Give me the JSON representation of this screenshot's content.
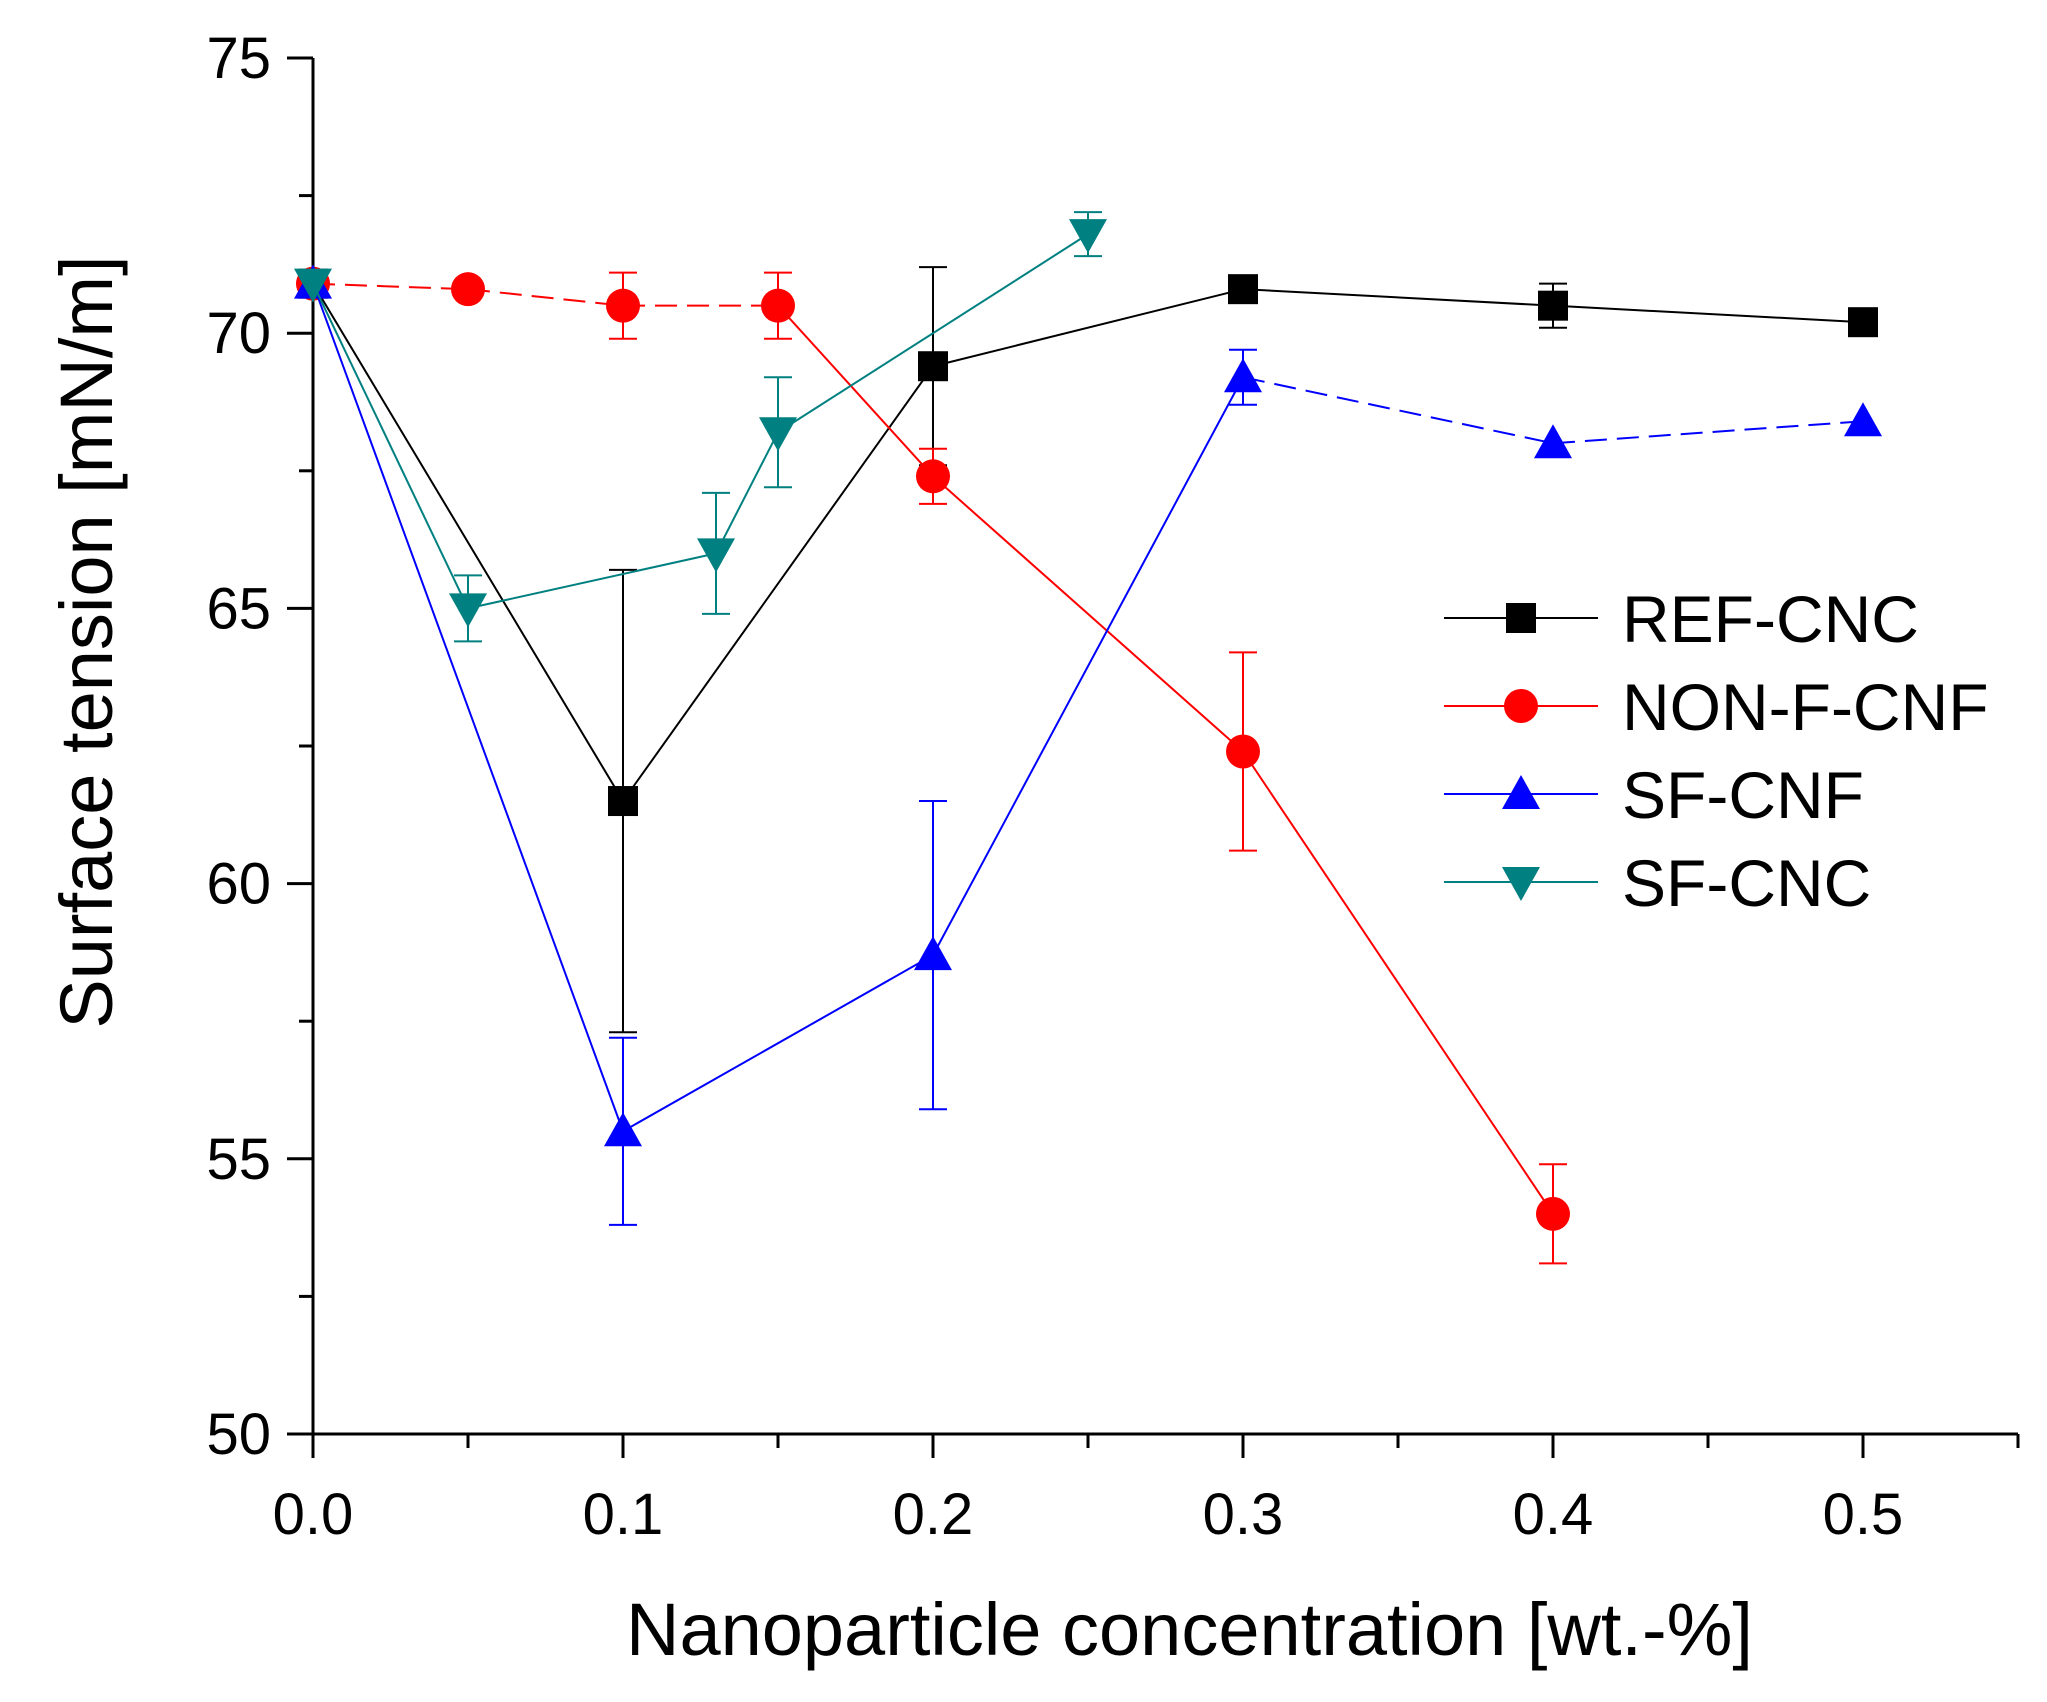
{
  "chart_data": {
    "type": "line",
    "title": "",
    "xlabel": "Nanoparticle concentration [wt.-%]",
    "ylabel": "Surface tension [mN/m]",
    "xlim": [
      0.0,
      0.55
    ],
    "ylim": [
      50,
      75
    ],
    "xticks": [
      0.0,
      0.1,
      0.2,
      0.3,
      0.4,
      0.5
    ],
    "xtick_labels": [
      "0.0",
      "0.1",
      "0.2",
      "0.3",
      "0.4",
      "0.5"
    ],
    "xminor": [
      0.05,
      0.15,
      0.25,
      0.35,
      0.45,
      0.55
    ],
    "yticks": [
      50,
      55,
      60,
      65,
      70,
      75
    ],
    "ytick_labels": [
      "50",
      "55",
      "60",
      "65",
      "70",
      "75"
    ],
    "yminor": [
      52.5,
      57.5,
      62.5,
      67.5,
      72.5
    ],
    "grid": false,
    "legend_position": "center-right",
    "series": [
      {
        "name": "REF-CNC",
        "color": "#000000",
        "marker": "square",
        "line_style": "solid",
        "x": [
          0.0,
          0.1,
          0.2,
          0.3,
          0.4,
          0.5
        ],
        "y": [
          70.9,
          61.5,
          69.4,
          70.8,
          70.5,
          70.2
        ],
        "err": [
          0,
          4.2,
          1.8,
          0,
          0.4,
          0.2
        ]
      },
      {
        "name": "NON-F-CNF",
        "color": "#ff0000",
        "marker": "circle",
        "line_style": "dashed-then-solid",
        "dash_until_index": 3,
        "x": [
          0.0,
          0.05,
          0.1,
          0.15,
          0.2,
          0.3,
          0.4
        ],
        "y": [
          70.9,
          70.8,
          70.5,
          70.5,
          67.4,
          62.4,
          54.0
        ],
        "err": [
          0,
          0,
          0.6,
          0.6,
          0.5,
          1.8,
          0.9
        ]
      },
      {
        "name": "SF-CNF",
        "color": "#0000ff",
        "marker": "triangle-up",
        "line_style": "solid-then-dashed",
        "dash_from_index": 4,
        "x": [
          0.0,
          0.1,
          0.2,
          0.3,
          0.4,
          0.5
        ],
        "y": [
          70.9,
          55.5,
          58.7,
          69.2,
          68.0,
          68.4
        ],
        "err": [
          0,
          1.7,
          2.8,
          0.5,
          0,
          0
        ]
      },
      {
        "name": "SF-CNC",
        "color": "#008080",
        "marker": "triangle-down",
        "line_style": "solid",
        "x": [
          0.0,
          0.05,
          0.13,
          0.15,
          0.25
        ],
        "y": [
          70.9,
          65.0,
          66.0,
          68.2,
          71.8
        ],
        "err": [
          0,
          0.6,
          1.1,
          1.0,
          0.4
        ]
      }
    ]
  }
}
